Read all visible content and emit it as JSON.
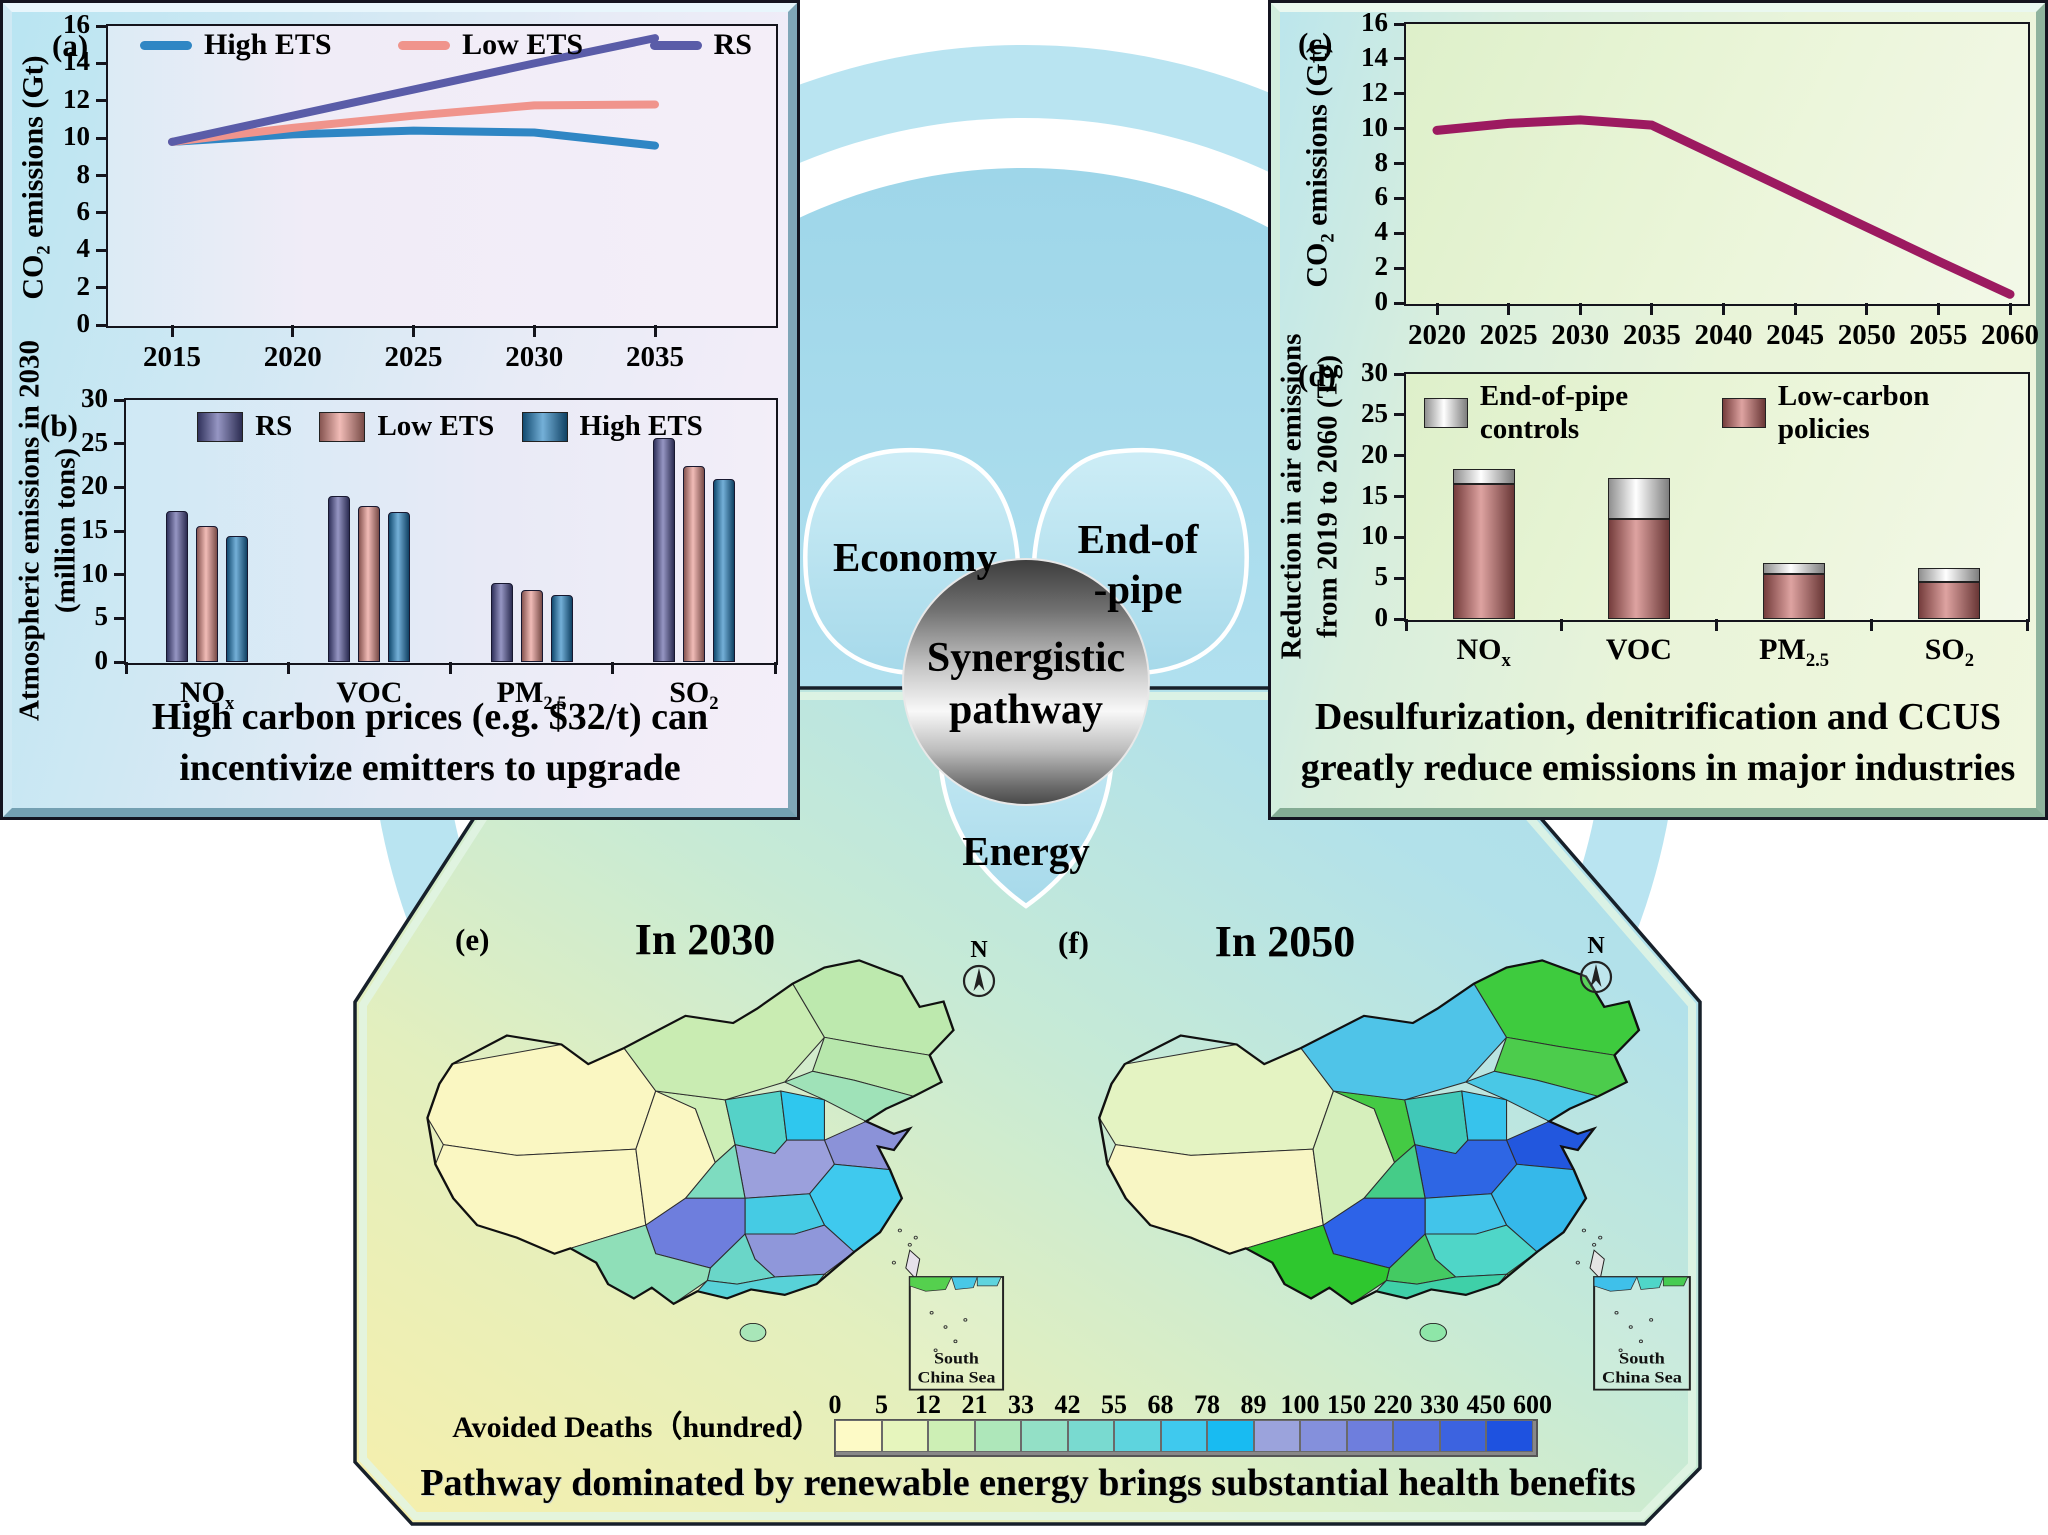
{
  "panels": {
    "left": {
      "label_a": "(a)",
      "label_b": "(b)",
      "caption_line1": "High carbon prices (e.g. $32/t) can",
      "caption_line2": "incentivize emitters to upgrade"
    },
    "right": {
      "label_c": "(c)",
      "label_d": "(d)",
      "caption_line1": "Desulfurization, denitrification and CCUS",
      "caption_line2": "greatly reduce emissions in major industries"
    },
    "bottom": {
      "caption": "Pathway dominated by renewable energy brings substantial health benefits"
    }
  },
  "center": {
    "petal_economy": "Economy",
    "petal_endofpipe_line1": "End-of",
    "petal_endofpipe_line2": "-pipe",
    "petal_energy": "Energy",
    "sphere_line1": "Synergistic",
    "sphere_line2": "pathway"
  },
  "chart_data": [
    {
      "id": "a",
      "type": "line",
      "ylabel": "CO_{2} emissions (Gt)",
      "ylabel_lines": [
        "CO_{2} emissions (Gt)"
      ],
      "ylim": [
        0,
        16
      ],
      "yticks": [
        0,
        2,
        4,
        6,
        8,
        10,
        12,
        14,
        16
      ],
      "x": [
        2015,
        2020,
        2025,
        2030,
        2035
      ],
      "xticks": [
        2015,
        2020,
        2025,
        2030,
        2035
      ],
      "legend_position": "top",
      "grid": false,
      "series": [
        {
          "name": "High ETS",
          "color": "#2f86c4",
          "values": [
            9.8,
            10.2,
            10.4,
            10.3,
            9.6
          ]
        },
        {
          "name": "Low ETS",
          "color": "#f0948c",
          "values": [
            9.8,
            10.55,
            11.2,
            11.75,
            11.8
          ]
        },
        {
          "name": "RS",
          "color": "#5a5ca8",
          "values": [
            9.8,
            11.2,
            12.6,
            14.0,
            15.35
          ]
        }
      ]
    },
    {
      "id": "b",
      "type": "bar",
      "ylabel": "Atmospheric emissions in 2030 (million tons)",
      "ylabel_lines": [
        "Atmospheric emissions in 2030",
        "(million tons)"
      ],
      "ylim": [
        0,
        30
      ],
      "yticks": [
        0,
        5,
        10,
        15,
        20,
        25,
        30
      ],
      "categories": [
        "NO_{x}",
        "VOC",
        "PM_{2.5}",
        "SO_{2}"
      ],
      "legend_position": "top",
      "grid": false,
      "series": [
        {
          "name": "RS",
          "color": "#55569e",
          "values": [
            17.3,
            19.0,
            9.1,
            25.7
          ]
        },
        {
          "name": "Low ETS",
          "color": "#e8938b",
          "values": [
            15.6,
            17.9,
            8.2,
            22.5
          ]
        },
        {
          "name": "High ETS",
          "color": "#1f7fc0",
          "values": [
            14.4,
            17.2,
            7.7,
            20.9
          ]
        }
      ]
    },
    {
      "id": "c",
      "type": "line",
      "ylabel": "CO_{2} emissions (Gt)",
      "ylabel_lines": [
        "CO_{2} emissions (Gt)"
      ],
      "ylim": [
        0,
        16
      ],
      "yticks": [
        0,
        2,
        4,
        6,
        8,
        10,
        12,
        14,
        16
      ],
      "x": [
        2020,
        2025,
        2030,
        2035,
        2040,
        2045,
        2050,
        2055,
        2060
      ],
      "xticks": [
        2020,
        2025,
        2030,
        2035,
        2040,
        2045,
        2050,
        2055,
        2060
      ],
      "legend_position": "none",
      "grid": false,
      "series": [
        {
          "name": "",
          "color": "#9c1a60",
          "values": [
            9.9,
            10.3,
            10.5,
            10.2,
            8.25,
            6.3,
            4.35,
            2.4,
            0.5
          ]
        }
      ]
    },
    {
      "id": "d",
      "type": "stacked-bar",
      "ylabel": "Reduction in air emissions from 2019 to 2060 (Tg)",
      "ylabel_lines": [
        "Reduction in air emissions",
        "from 2019 to 2060 (Tg)"
      ],
      "ylim": [
        0,
        30
      ],
      "yticks": [
        0,
        5,
        10,
        15,
        20,
        25,
        30
      ],
      "categories": [
        "NO_{x}",
        "VOC",
        "PM_{2.5}",
        "SO_{2}"
      ],
      "legend_position": "top",
      "grid": false,
      "legend_order": [
        "End-of-pipe controls",
        "Low-carbon policies"
      ],
      "series": [
        {
          "name": "Low-carbon policies",
          "color": "#c96a68",
          "values": [
            16.5,
            12.3,
            5.5,
            4.5
          ]
        },
        {
          "name": "End-of-pipe controls",
          "color": "#bfbfbf",
          "values": [
            1.9,
            5.0,
            1.3,
            1.7
          ]
        }
      ]
    }
  ],
  "maps": {
    "legend_label": "Avoided Deaths（hundred）",
    "legend_values": [
      0,
      5,
      12,
      21,
      33,
      42,
      55,
      68,
      78,
      89,
      100,
      150,
      220,
      330,
      450,
      600
    ],
    "legend_colors": [
      "#fdfac6",
      "#e6f5bd",
      "#cdefb5",
      "#aee7ba",
      "#93e0c6",
      "#79dad0",
      "#5ed4de",
      "#3fc9ee",
      "#18bbf2",
      "#9ba3dc",
      "#8490dc",
      "#6e7edd",
      "#5570de",
      "#3c63e0",
      "#1e52e0"
    ],
    "e": {
      "label": "(e)",
      "title": "In 2030",
      "compass": "N",
      "inset_line1": "South",
      "inset_line2": "China Sea",
      "inset_fills": [
        "#55d04e",
        "#49c8e6",
        "#5ed4de"
      ],
      "fills": {
        "xinjiang": "#faf7c2",
        "tibet": "#faf7c2",
        "qinghai": "#faf7c2",
        "gansu": "#cdeeb6",
        "inner_mongolia": "#c9ecb2",
        "heilongjiang": "#bde9ae",
        "jilin": "#b7e7ac",
        "liaoning": "#9fe2b8",
        "shanxi": "#55d2c8",
        "hebei": "#2fc7ee",
        "shandong": "#8b92d8",
        "henan": "#9ba0dc",
        "shaanxi": "#7edcc0",
        "east": "#3fc9ee",
        "hubei": "#45cbe4",
        "sichuan": "#6e7edd",
        "hunan": "#8f97da",
        "guizhou": "#6ad6c8",
        "yunnan": "#8fdfb8",
        "south": "#58d2d8",
        "fujian": "#d4f0b4",
        "taiwan": "#e6e1ea",
        "hainan": "#a8e6b8"
      }
    },
    "f": {
      "label": "(f)",
      "title": "In 2050",
      "compass": "N",
      "inset_line1": "South",
      "inset_line2": "China Sea",
      "inset_fills": [
        "#3fc0ea",
        "#4fd6c8",
        "#46cc52"
      ],
      "fills": {
        "xinjiang": "#e4f3c2",
        "tibet": "#f8f6c4",
        "qinghai": "#d6efbc",
        "gansu": "#44ca44",
        "inner_mongolia": "#4fc4e8",
        "heilongjiang": "#3ecb3e",
        "jilin": "#4ccc4c",
        "liaoning": "#49c8e6",
        "shanxi": "#40c8b8",
        "hebei": "#37c3ec",
        "shandong": "#2257de",
        "henan": "#2e66e4",
        "shaanxi": "#45cc88",
        "east": "#35b8ea",
        "hubei": "#42c4ea",
        "sichuan": "#2d63e8",
        "hunan": "#4fd6c8",
        "guizhou": "#44ca62",
        "yunnan": "#2ec72e",
        "south": "#3fd0a8",
        "fujian": "#46cc52",
        "taiwan": "#e4e4e4",
        "hainan": "#8ee6a8"
      }
    }
  }
}
